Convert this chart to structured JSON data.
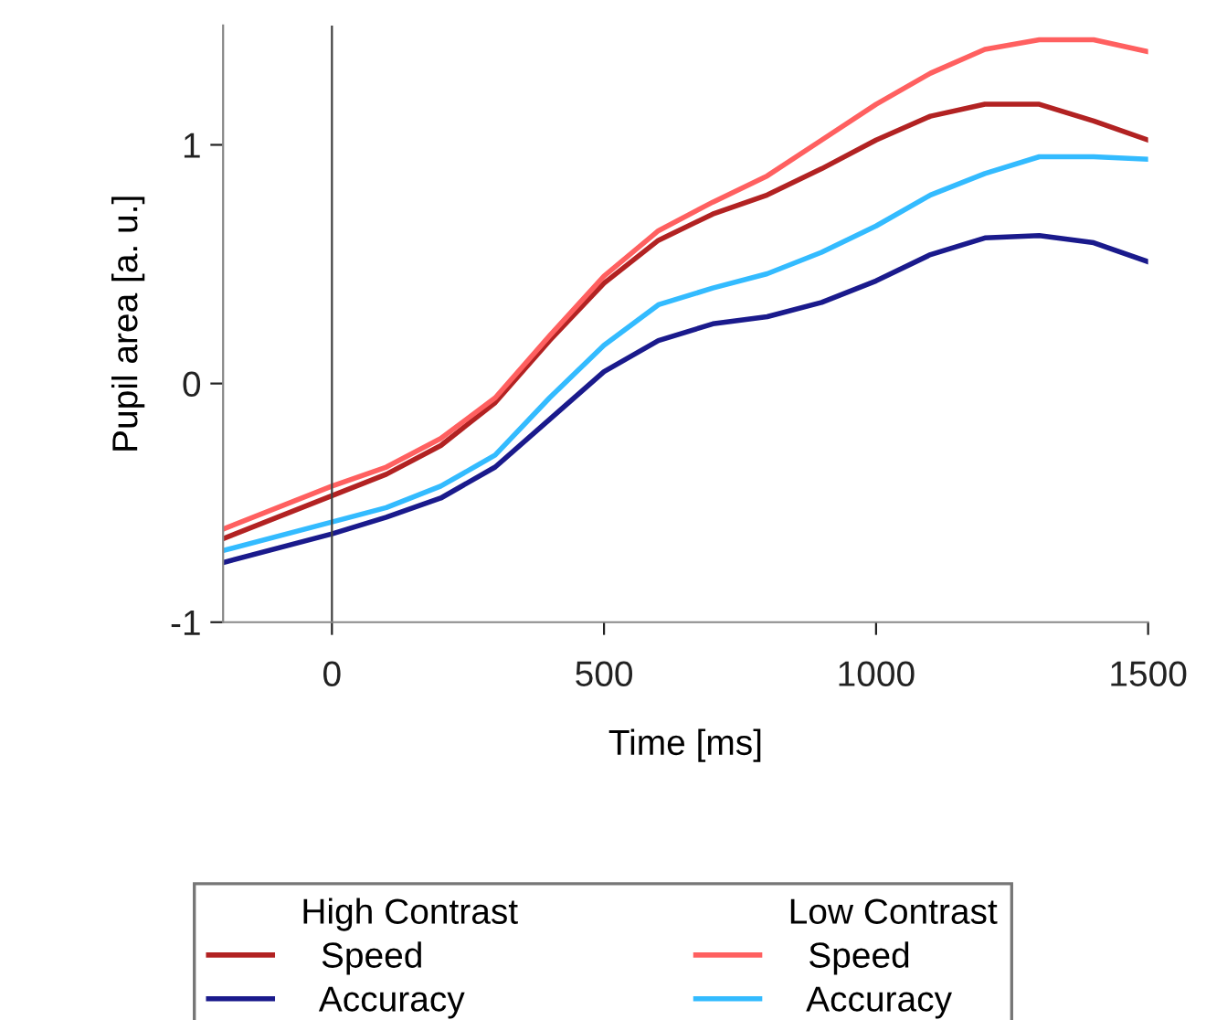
{
  "chart_data": {
    "type": "line",
    "xlabel": "Time [ms]",
    "ylabel": "Pupil area [a. u.]",
    "x": [
      -200,
      0,
      100,
      200,
      300,
      400,
      500,
      600,
      700,
      800,
      900,
      1000,
      1100,
      1200,
      1300,
      1400,
      1500
    ],
    "series": [
      {
        "name": "Speed",
        "color": "#b22222",
        "values": [
          -0.65,
          -0.47,
          -0.38,
          -0.26,
          -0.08,
          0.18,
          0.42,
          0.6,
          0.71,
          0.79,
          0.9,
          1.02,
          1.12,
          1.17,
          1.17,
          1.1,
          1.02
        ]
      },
      {
        "name": "Accuracy",
        "color": "#1a1a8c",
        "values": [
          -0.75,
          -0.63,
          -0.56,
          -0.48,
          -0.35,
          -0.15,
          0.05,
          0.18,
          0.25,
          0.28,
          0.34,
          0.43,
          0.54,
          0.61,
          0.62,
          0.59,
          0.51
        ]
      },
      {
        "name": "Speed",
        "color": "#ff6060",
        "values": [
          -0.61,
          -0.43,
          -0.35,
          -0.23,
          -0.06,
          0.2,
          0.45,
          0.64,
          0.76,
          0.87,
          1.02,
          1.17,
          1.3,
          1.4,
          1.44,
          1.44,
          1.39
        ]
      },
      {
        "name": "Accuracy",
        "color": "#33bbff",
        "values": [
          -0.7,
          -0.58,
          -0.52,
          -0.43,
          -0.3,
          -0.06,
          0.16,
          0.33,
          0.4,
          0.46,
          0.55,
          0.66,
          0.79,
          0.88,
          0.95,
          0.95,
          0.94
        ]
      }
    ],
    "annotations": [
      "High Contrast",
      "Low Contrast"
    ],
    "xlim": [
      -200,
      1500
    ],
    "xticks": [
      0,
      500,
      1000,
      1500
    ],
    "ylim": [
      -1,
      1.5
    ],
    "yticks": [
      -1,
      0,
      1
    ],
    "ref_lines": [
      {
        "axis": "x",
        "value": 0,
        "color": "#404040"
      }
    ],
    "grid": false,
    "legend": "bottom",
    "line_style": "solid"
  }
}
